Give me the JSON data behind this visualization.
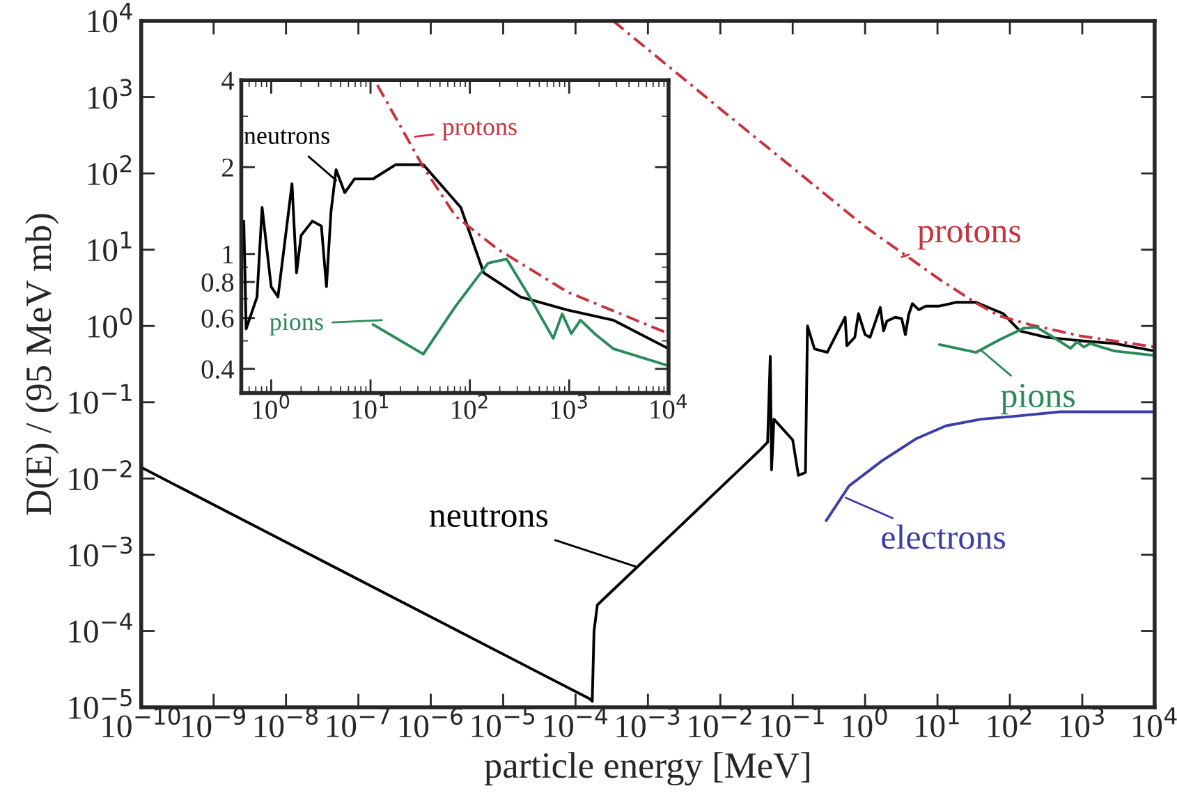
{
  "chart_data": [
    {
      "type": "line",
      "xlabel": "particle energy [MeV]",
      "ylabel": "D(E) / (95 MeV mb)",
      "log": "xy",
      "grid": false,
      "legend": false,
      "xlim": [
        1e-10,
        10000
      ],
      "ylim": [
        1e-05,
        10000
      ],
      "xticks": [
        {
          "value": 1e-10,
          "label": "10$^{−10}$"
        },
        {
          "value": 1e-09,
          "label": "10$^{−9}$"
        },
        {
          "value": 1e-08,
          "label": "10$^{−8}$"
        },
        {
          "value": 1e-07,
          "label": "10$^{−7}$"
        },
        {
          "value": 1e-06,
          "label": "10$^{−6}$"
        },
        {
          "value": 1e-05,
          "label": "10$^{−5}$"
        },
        {
          "value": 0.0001,
          "label": "10$^{−4}$"
        },
        {
          "value": 0.001,
          "label": "10$^{−3}$"
        },
        {
          "value": 0.01,
          "label": "10$^{−2}$"
        },
        {
          "value": 0.1,
          "label": "10$^{−1}$"
        },
        {
          "value": 1,
          "label": "10$^{0}$"
        },
        {
          "value": 10,
          "label": "10$^{1}$"
        },
        {
          "value": 100,
          "label": "10$^{2}$"
        },
        {
          "value": 1000,
          "label": "10$^{3}$"
        },
        {
          "value": 10000,
          "label": "10$^{4}$"
        }
      ],
      "yticks": [
        {
          "value": 1e-05,
          "label": "10$^{−5}$"
        },
        {
          "value": 0.0001,
          "label": "10$^{−4}$"
        },
        {
          "value": 0.001,
          "label": "10$^{−3}$"
        },
        {
          "value": 0.01,
          "label": "10$^{−2}$"
        },
        {
          "value": 0.1,
          "label": "10$^{−1}$"
        },
        {
          "value": 1,
          "label": "10$^{0}$"
        },
        {
          "value": 10,
          "label": "10$^{1}$"
        },
        {
          "value": 100,
          "label": "10$^{2}$"
        },
        {
          "value": 1000,
          "label": "10$^{3}$"
        },
        {
          "value": 10000,
          "label": "10$^{4}$"
        }
      ],
      "series": [
        {
          "color": "#000000",
          "line_style": "solid",
          "x": [
            1e-10,
            0.000155,
            0.00017,
            0.00018,
            0.0002,
            0.036,
            0.045,
            0.049,
            0.051,
            0.055,
            0.1,
            0.12,
            0.15,
            0.16,
            0.2,
            0.3,
            0.53,
            0.56,
            0.72,
            0.81,
            1.0,
            1.17,
            1.38,
            1.62,
            1.8,
            2.0,
            2.6,
            3.2,
            3.6,
            4.0,
            4.5,
            5.5,
            6.9,
            10.6,
            18,
            34,
            81,
            138,
            324,
            950,
            2770,
            10000
          ],
          "values": [
            0.014,
            1.3e-05,
            1.2e-05,
            0.0001,
            0.00022,
            0.024,
            0.03,
            0.4,
            0.013,
            0.06,
            0.032,
            0.011,
            0.012,
            1.0,
            0.5,
            0.45,
            1.3,
            0.55,
            0.71,
            1.45,
            0.77,
            0.71,
            1.12,
            1.75,
            0.86,
            1.16,
            1.3,
            1.25,
            0.77,
            1.4,
            1.96,
            1.63,
            1.82,
            1.82,
            2.04,
            2.04,
            1.45,
            0.86,
            0.71,
            0.64,
            0.59,
            0.47
          ]
        },
        {
          "color": "#c8323c",
          "line_style": "dashed",
          "x": [
            0.00033,
            0.01,
            1,
            11.7,
            34,
            72,
            190,
            950,
            10000
          ],
          "values": [
            10000,
            700,
            20,
            3.85,
            2.0,
            1.35,
            1.04,
            0.74,
            0.53
          ]
        },
        {
          "color": "#2a8a5a",
          "line_style": "solid",
          "x": [
            10.6,
            34,
            72,
            153,
            235,
            400,
            690,
            850,
            1050,
            1300,
            1800,
            2770,
            10000
          ],
          "values": [
            0.57,
            0.45,
            0.66,
            0.93,
            0.96,
            0.71,
            0.51,
            0.62,
            0.53,
            0.59,
            0.53,
            0.47,
            0.41
          ]
        },
        {
          "color": "#3c3caa",
          "line_style": "solid",
          "x": [
            0.29,
            0.6,
            1.7,
            5,
            13,
            40,
            125,
            500,
            10000
          ],
          "values": [
            0.0028,
            0.008,
            0.017,
            0.033,
            0.049,
            0.06,
            0.066,
            0.075,
            0.075
          ]
        }
      ],
      "annotations": [
        {
          "text": "neutrons",
          "x": 0.00068,
          "y": 0.0007
        },
        {
          "text": "protons",
          "x": 3.2,
          "y": 8
        },
        {
          "text": "pions",
          "x": 40,
          "y": 0.48
        },
        {
          "text": "electrons",
          "x": 0.54,
          "y": 0.0056
        }
      ]
    },
    {
      "type": "line",
      "log": "xy",
      "grid": false,
      "legend": false,
      "xlim": [
        0.5,
        10000
      ],
      "ylim": [
        0.33,
        4
      ],
      "xticks": [
        {
          "value": 1,
          "label": "10$^{0}$"
        },
        {
          "value": 10,
          "label": "10$^{1}$"
        },
        {
          "value": 100,
          "label": "10$^{2}$"
        },
        {
          "value": 1000,
          "label": "10$^{3}$"
        },
        {
          "value": 10000,
          "label": "10$^{4}$"
        }
      ],
      "yticks": [
        0.4,
        0.6,
        0.8,
        1,
        2,
        4
      ],
      "series": [
        {
          "color": "#000000",
          "line_style": "solid",
          "x": [
            0.53,
            0.56,
            0.72,
            0.81,
            1.0,
            1.17,
            1.38,
            1.62,
            1.8,
            2.0,
            2.6,
            3.2,
            3.6,
            4.0,
            4.5,
            5.5,
            6.9,
            10.6,
            18,
            34,
            81,
            138,
            324,
            950,
            2770,
            10000
          ],
          "values": [
            1.3,
            0.55,
            0.71,
            1.45,
            0.77,
            0.71,
            1.12,
            1.75,
            0.86,
            1.16,
            1.3,
            1.25,
            0.77,
            1.4,
            1.96,
            1.63,
            1.82,
            1.82,
            2.04,
            2.04,
            1.45,
            0.86,
            0.71,
            0.64,
            0.59,
            0.47
          ]
        },
        {
          "color": "#c8323c",
          "line_style": "dashed",
          "x": [
            11.7,
            34,
            72,
            190,
            950,
            10000
          ],
          "values": [
            3.85,
            2.0,
            1.35,
            1.04,
            0.74,
            0.53
          ]
        },
        {
          "color": "#2a8a5a",
          "line_style": "solid",
          "x": [
            10.6,
            34,
            72,
            153,
            235,
            400,
            690,
            850,
            1050,
            1300,
            1800,
            2770,
            10000
          ],
          "values": [
            0.57,
            0.45,
            0.66,
            0.93,
            0.96,
            0.71,
            0.51,
            0.62,
            0.53,
            0.59,
            0.53,
            0.47,
            0.41
          ]
        }
      ],
      "annotations": [
        {
          "text": "neutrons",
          "x": 4.5,
          "y": 1.8
        },
        {
          "text": "protons",
          "x": 28,
          "y": 2.55
        },
        {
          "text": "pions",
          "x": 13,
          "y": 0.59
        }
      ]
    }
  ]
}
